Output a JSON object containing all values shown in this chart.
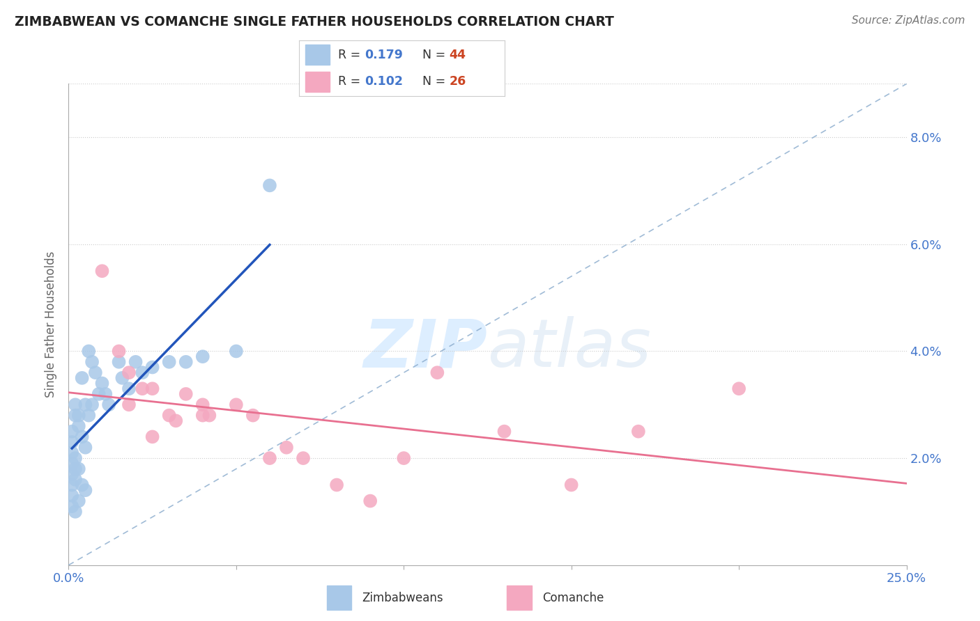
{
  "title": "ZIMBABWEAN VS COMANCHE SINGLE FATHER HOUSEHOLDS CORRELATION CHART",
  "source": "Source: ZipAtlas.com",
  "ylabel": "Single Father Households",
  "xlim": [
    0.0,
    0.25
  ],
  "ylim": [
    0.0,
    0.09
  ],
  "blue_R": "0.179",
  "blue_N": "44",
  "pink_R": "0.102",
  "pink_N": "26",
  "blue_color": "#a8c8e8",
  "pink_color": "#f4a8c0",
  "blue_line_color": "#2255bb",
  "pink_line_color": "#e87090",
  "diag_line_color": "#88aacc",
  "watermark_color": "#ddeeff",
  "background_color": "#ffffff",
  "grid_color": "#cccccc",
  "x_ticks": [
    0.0,
    0.05,
    0.1,
    0.15,
    0.2,
    0.25
  ],
  "x_tick_labels": [
    "0.0%",
    "",
    "",
    "",
    "",
    "25.0%"
  ],
  "y_ticks": [
    0.02,
    0.04,
    0.06,
    0.08
  ],
  "y_tick_labels": [
    "2.0%",
    "4.0%",
    "6.0%",
    "8.0%"
  ],
  "legend_label_blue": "Zimbabweans",
  "legend_label_pink": "Comanche",
  "blue_x": [
    0.001,
    0.001,
    0.001,
    0.001,
    0.001,
    0.001,
    0.001,
    0.001,
    0.002,
    0.002,
    0.002,
    0.002,
    0.002,
    0.002,
    0.003,
    0.003,
    0.003,
    0.003,
    0.004,
    0.004,
    0.004,
    0.005,
    0.005,
    0.005,
    0.006,
    0.006,
    0.007,
    0.007,
    0.008,
    0.009,
    0.01,
    0.011,
    0.012,
    0.015,
    0.016,
    0.018,
    0.02,
    0.022,
    0.025,
    0.03,
    0.035,
    0.04,
    0.05,
    0.06
  ],
  "blue_y": [
    0.025,
    0.023,
    0.021,
    0.019,
    0.017,
    0.015,
    0.013,
    0.011,
    0.03,
    0.028,
    0.02,
    0.018,
    0.016,
    0.01,
    0.028,
    0.026,
    0.018,
    0.012,
    0.035,
    0.024,
    0.015,
    0.03,
    0.022,
    0.014,
    0.04,
    0.028,
    0.038,
    0.03,
    0.036,
    0.032,
    0.034,
    0.032,
    0.03,
    0.038,
    0.035,
    0.033,
    0.038,
    0.036,
    0.037,
    0.038,
    0.038,
    0.039,
    0.04,
    0.071
  ],
  "pink_x": [
    0.01,
    0.015,
    0.018,
    0.022,
    0.025,
    0.03,
    0.032,
    0.035,
    0.04,
    0.042,
    0.05,
    0.055,
    0.06,
    0.065,
    0.07,
    0.08,
    0.09,
    0.1,
    0.11,
    0.13,
    0.15,
    0.17,
    0.2,
    0.018,
    0.025,
    0.04
  ],
  "pink_y": [
    0.055,
    0.04,
    0.036,
    0.033,
    0.033,
    0.028,
    0.027,
    0.032,
    0.03,
    0.028,
    0.03,
    0.028,
    0.02,
    0.022,
    0.02,
    0.015,
    0.012,
    0.02,
    0.036,
    0.025,
    0.015,
    0.025,
    0.033,
    0.03,
    0.024,
    0.028
  ]
}
